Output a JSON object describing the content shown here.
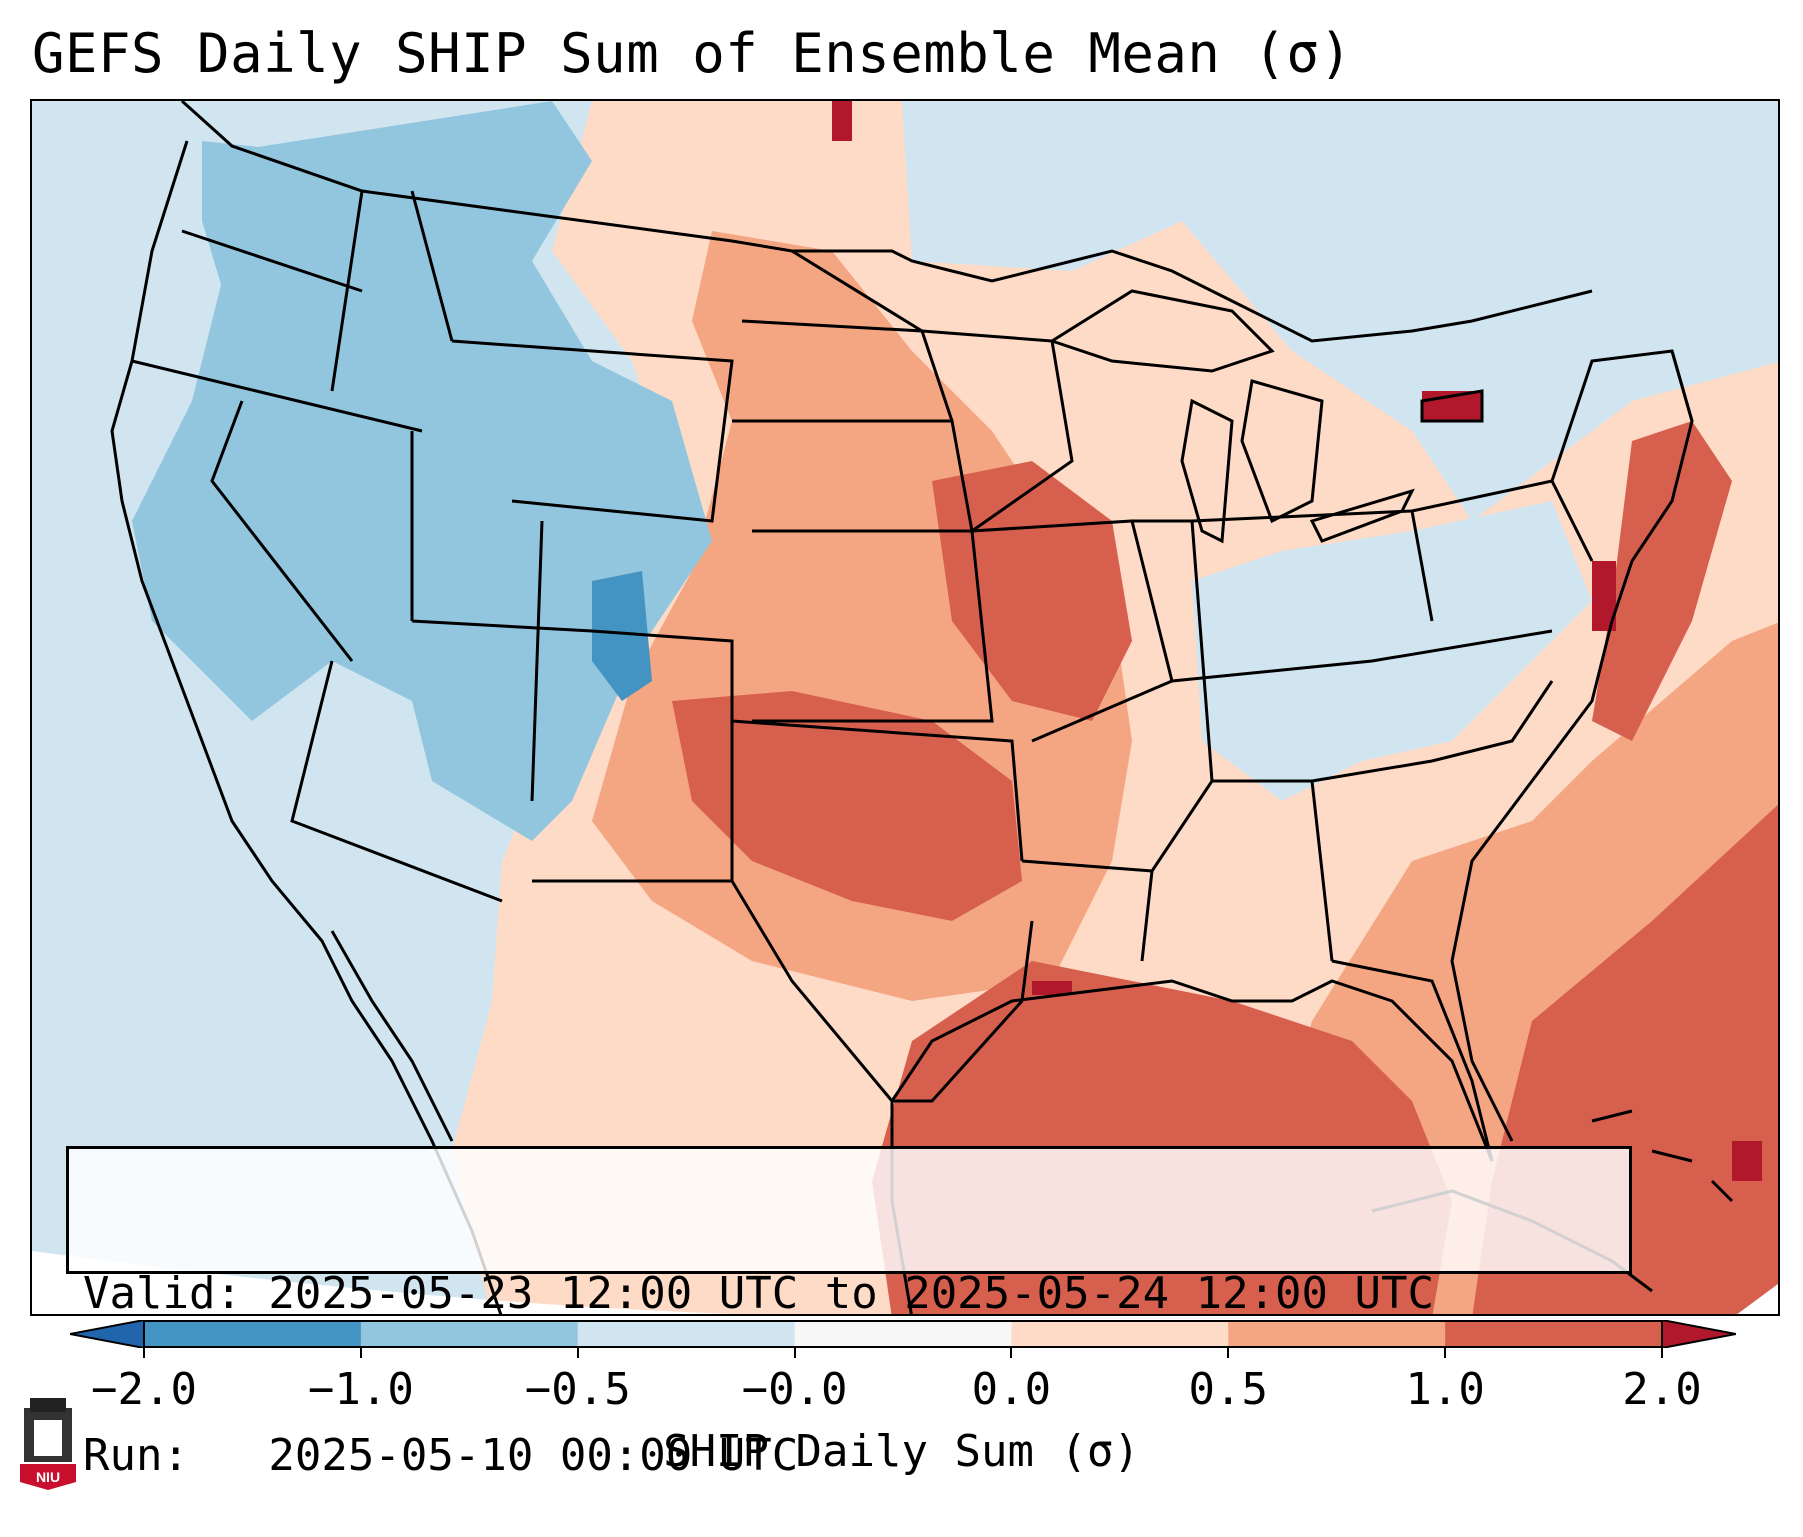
{
  "title": "GEFS Daily SHIP Sum of Ensemble Mean (σ)",
  "info": {
    "valid": "Valid: 2025-05-23 12:00 UTC to 2025-05-24 12:00 UTC",
    "run": "Run:   2025-05-10 00:00 UTC"
  },
  "colorbar": {
    "label": "SHIP Daily Sum (σ)",
    "ticks": [
      "-2.0",
      "-1.0",
      "-0.5",
      "-0.0",
      "0.0",
      "0.5",
      "1.0",
      "2.0"
    ],
    "colors": [
      "#4393c3",
      "#92c5de",
      "#d1e5f0",
      "#f7f7f7",
      "#fddbc7",
      "#f4a582",
      "#d6604d"
    ],
    "under_color": "#2166ac",
    "over_color": "#b2182b"
  },
  "logo": {
    "text": "NIU",
    "name": "niu-logo"
  },
  "map_colors": {
    "background": "#d1e5f0",
    "dark_blue": "#4393c3",
    "mid_blue": "#92c5de",
    "light_blue": "#d1e5f0",
    "light_orange": "#fddbc7",
    "orange": "#f4a582",
    "red": "#d6604d",
    "dark_red": "#b2182b"
  }
}
